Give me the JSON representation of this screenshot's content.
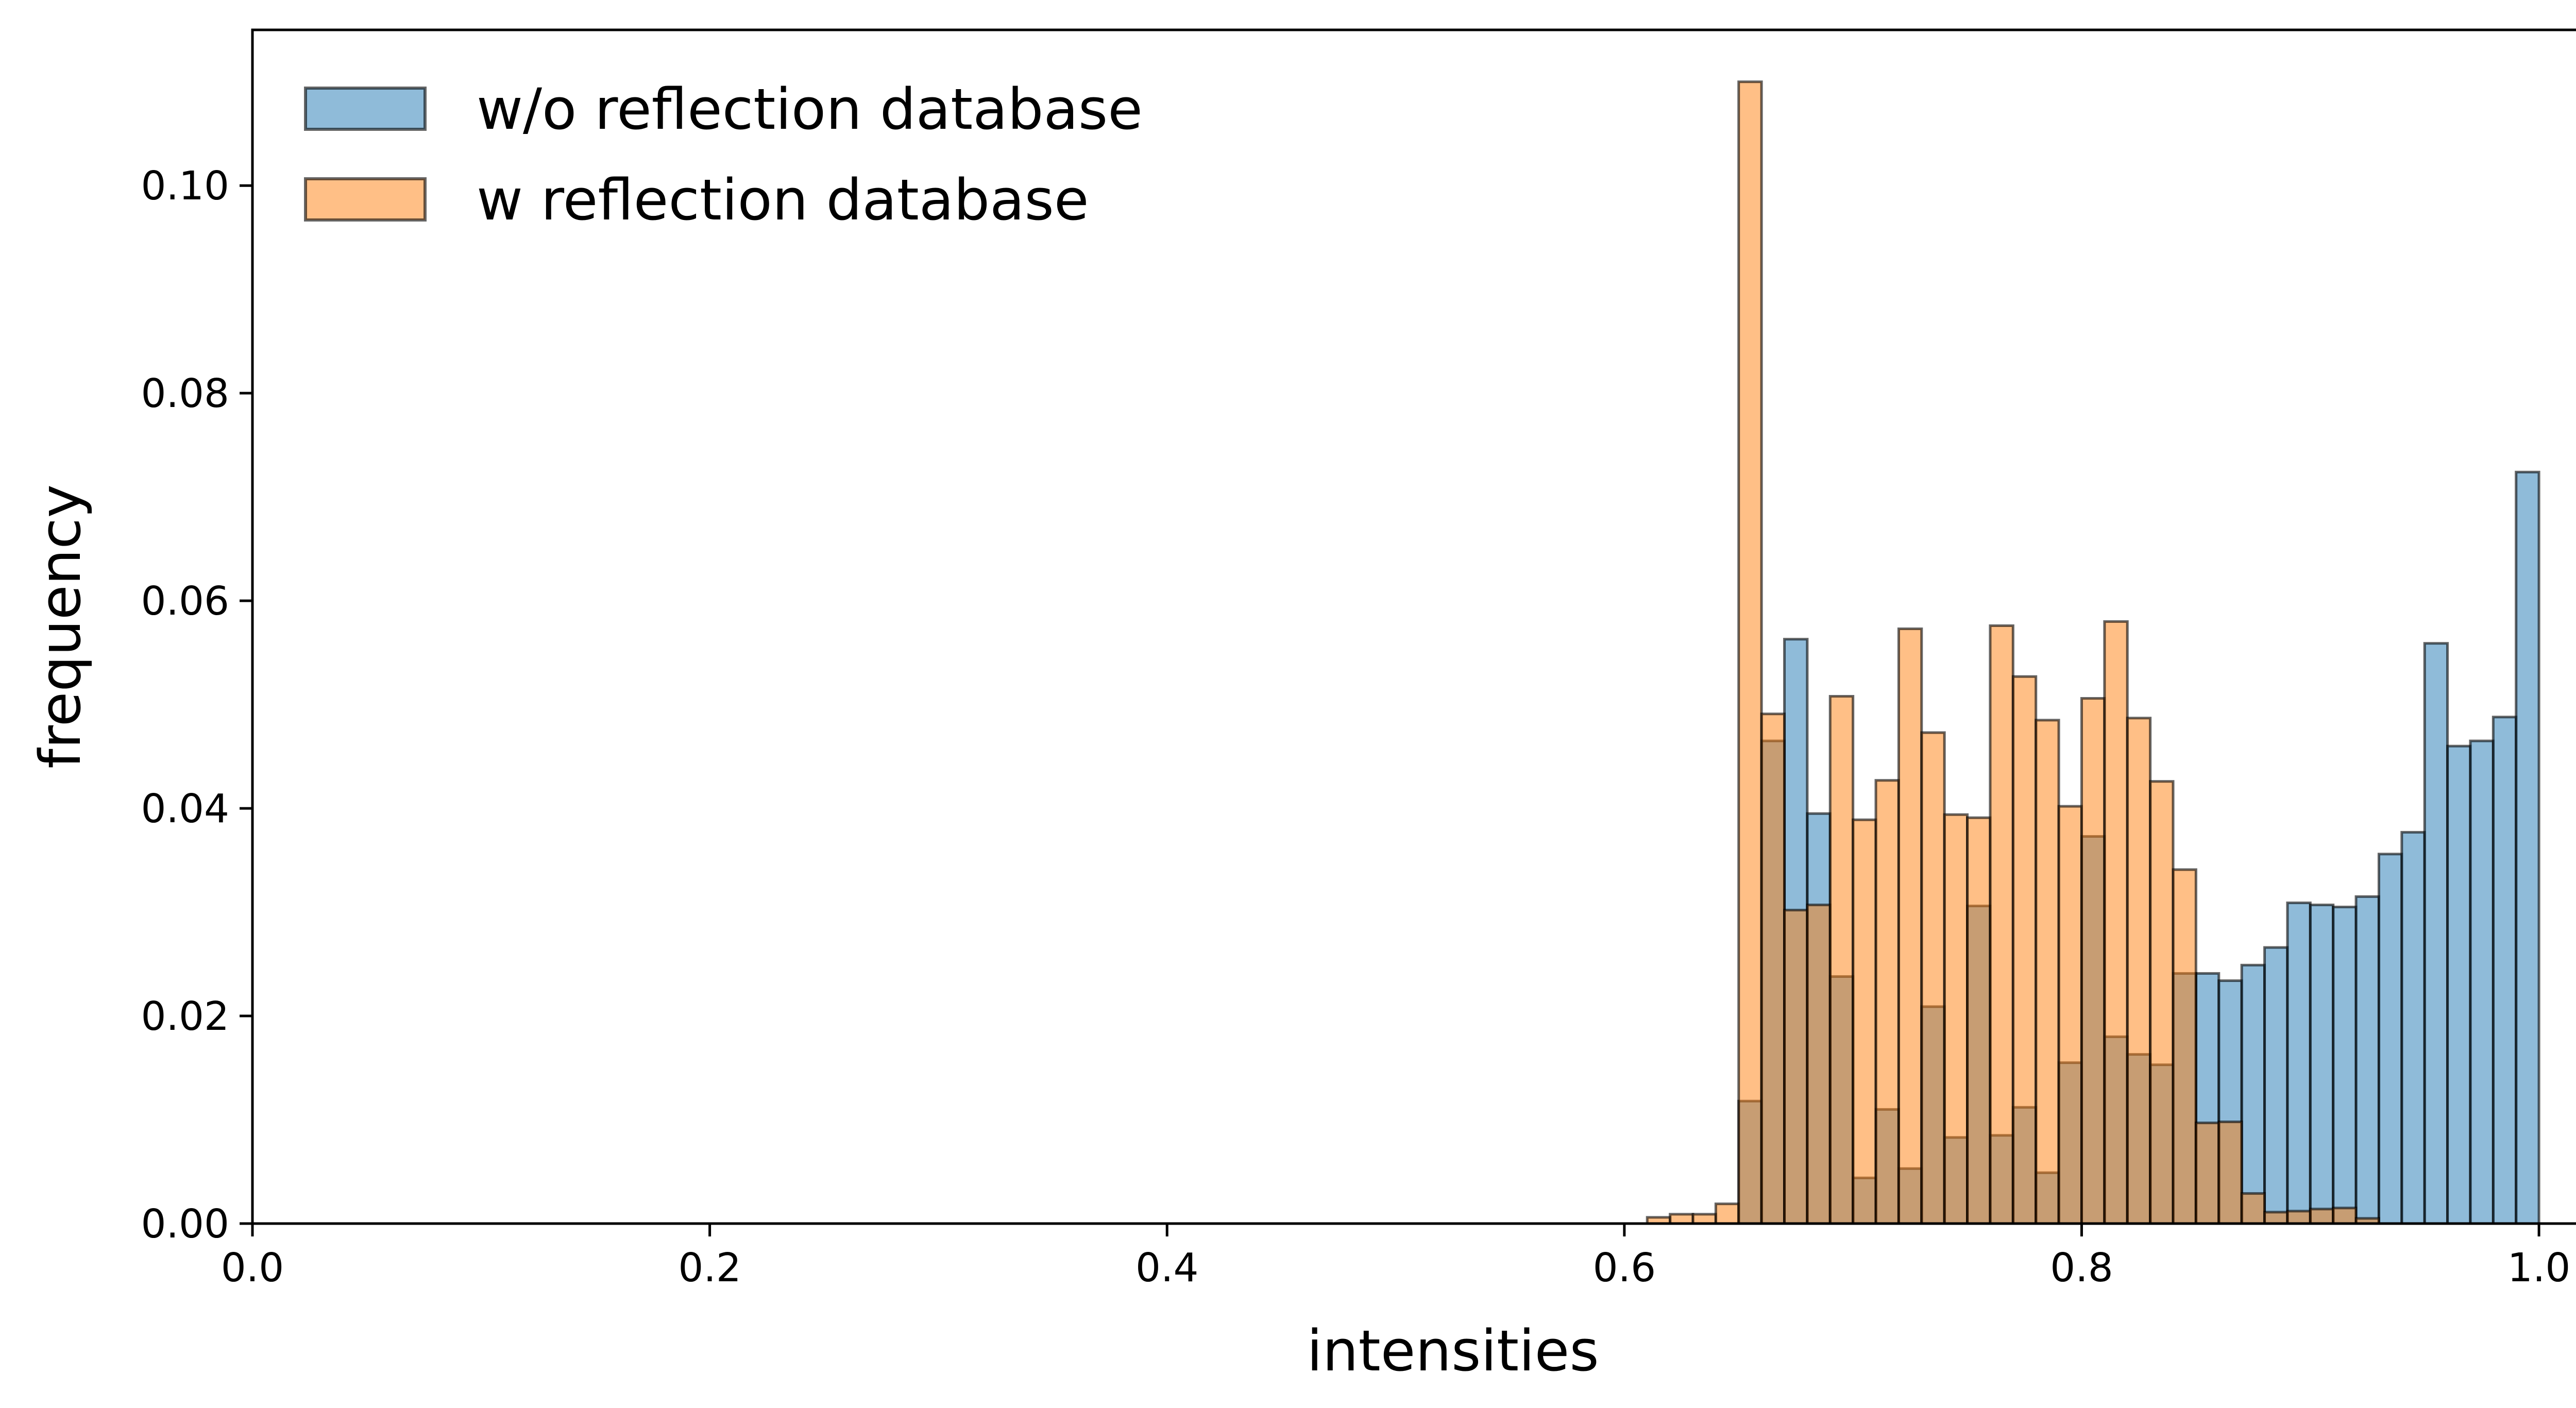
{
  "chart_data": {
    "type": "histogram",
    "title": "",
    "xlabel": "intensities",
    "ylabel": "frequency",
    "xlim": [
      0.0,
      1.05
    ],
    "ylim": [
      0.0,
      0.115
    ],
    "xticks": [
      "0.0",
      "0.2",
      "0.4",
      "0.6",
      "0.8",
      "1.0"
    ],
    "yticks": [
      "0.00",
      "0.02",
      "0.04",
      "0.06",
      "0.08",
      "0.10"
    ],
    "grid": false,
    "legend_position": "upper-left",
    "bin_width": 0.01,
    "series": [
      {
        "name": "w/o reflection database",
        "color": "#1f77b4",
        "bins": [
          [
            0.65,
            0.0118
          ],
          [
            0.66,
            0.0465
          ],
          [
            0.67,
            0.0563
          ],
          [
            0.68,
            0.0395
          ],
          [
            0.69,
            0.0238
          ],
          [
            0.7,
            0.0044
          ],
          [
            0.71,
            0.011
          ],
          [
            0.72,
            0.0053
          ],
          [
            0.73,
            0.0209
          ],
          [
            0.74,
            0.0083
          ],
          [
            0.75,
            0.0306
          ],
          [
            0.76,
            0.0085
          ],
          [
            0.77,
            0.0112
          ],
          [
            0.78,
            0.0049
          ],
          [
            0.79,
            0.0155
          ],
          [
            0.8,
            0.0373
          ],
          [
            0.81,
            0.018
          ],
          [
            0.82,
            0.0163
          ],
          [
            0.83,
            0.0153
          ],
          [
            0.84,
            0.0241
          ],
          [
            0.85,
            0.0241
          ],
          [
            0.86,
            0.0234
          ],
          [
            0.87,
            0.0249
          ],
          [
            0.88,
            0.0266
          ],
          [
            0.89,
            0.0309
          ],
          [
            0.9,
            0.0307
          ],
          [
            0.91,
            0.0305
          ],
          [
            0.92,
            0.0315
          ],
          [
            0.93,
            0.0356
          ],
          [
            0.94,
            0.0377
          ],
          [
            0.95,
            0.0559
          ],
          [
            0.96,
            0.046
          ],
          [
            0.97,
            0.0465
          ],
          [
            0.98,
            0.0488
          ],
          [
            0.99,
            0.0724
          ]
        ]
      },
      {
        "name": "w reflection database",
        "color": "#ff7f0e",
        "bins": [
          [
            0.61,
            0.0006
          ],
          [
            0.62,
            0.0009
          ],
          [
            0.63,
            0.0009
          ],
          [
            0.64,
            0.0019
          ],
          [
            0.65,
            0.11
          ],
          [
            0.66,
            0.0491
          ],
          [
            0.67,
            0.0302
          ],
          [
            0.68,
            0.0307
          ],
          [
            0.69,
            0.0508
          ],
          [
            0.7,
            0.0389
          ],
          [
            0.71,
            0.0427
          ],
          [
            0.72,
            0.0573
          ],
          [
            0.73,
            0.0473
          ],
          [
            0.74,
            0.0394
          ],
          [
            0.75,
            0.0391
          ],
          [
            0.76,
            0.0576
          ],
          [
            0.77,
            0.0527
          ],
          [
            0.78,
            0.0485
          ],
          [
            0.79,
            0.0402
          ],
          [
            0.8,
            0.0506
          ],
          [
            0.81,
            0.058
          ],
          [
            0.82,
            0.0487
          ],
          [
            0.83,
            0.0426
          ],
          [
            0.84,
            0.0341
          ],
          [
            0.85,
            0.0097
          ],
          [
            0.86,
            0.0098
          ],
          [
            0.87,
            0.0029
          ],
          [
            0.88,
            0.0011
          ],
          [
            0.89,
            0.0012
          ],
          [
            0.9,
            0.0014
          ],
          [
            0.91,
            0.0015
          ],
          [
            0.92,
            0.0005
          ]
        ]
      }
    ]
  }
}
